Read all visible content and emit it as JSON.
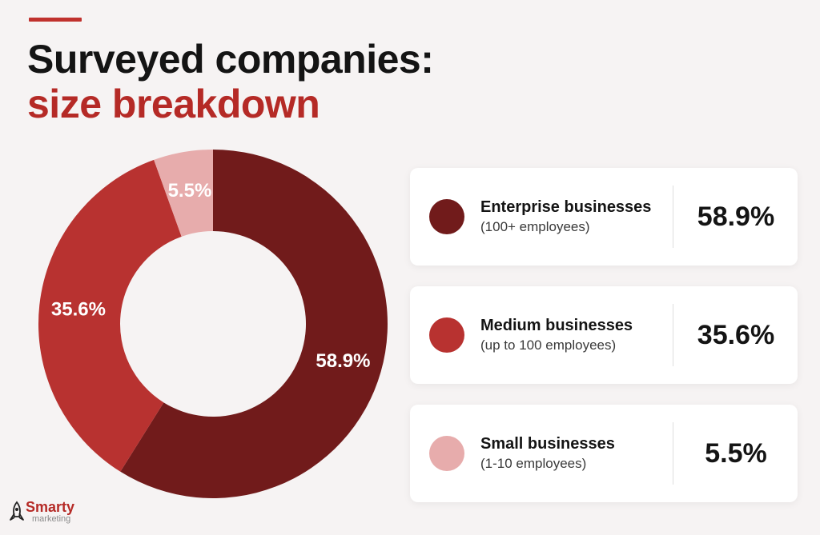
{
  "header": {
    "title_line1": "Surveyed companies:",
    "title_line2": "size breakdown"
  },
  "colors": {
    "accent": "#c0312d",
    "enterprise": "#711b1b",
    "medium": "#b83230",
    "small": "#e7acac"
  },
  "chart_data": {
    "type": "pie",
    "variant": "donut",
    "title": "Surveyed companies: size breakdown",
    "legend_position": "right",
    "slices": [
      {
        "name": "Enterprise businesses",
        "description": "(100+ employees)",
        "value": 58.9,
        "label": "58.9%",
        "color": "#711b1b"
      },
      {
        "name": "Medium businesses",
        "description": "(up to 100 employees)",
        "value": 35.6,
        "label": "35.6%",
        "color": "#b83230"
      },
      {
        "name": "Small businesses",
        "description": "(1-10 employees)",
        "value": 5.5,
        "label": "5.5%",
        "color": "#e7acac"
      }
    ]
  },
  "brand": {
    "name": "Smarty",
    "tagline": "marketing"
  }
}
